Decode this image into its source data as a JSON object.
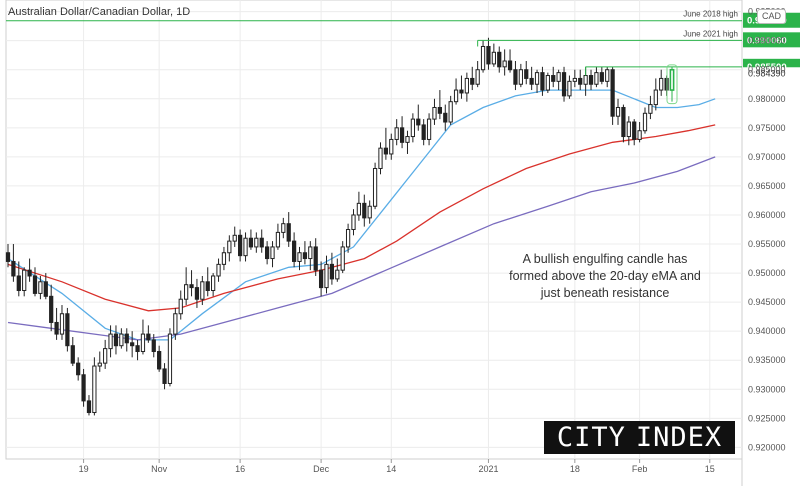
{
  "chart_data": {
    "type": "candlestick",
    "title": "Australian Dollar/Canadian Dollar, 1D",
    "currency": "CAD",
    "ylim": [
      0.918,
      0.997
    ],
    "y_ticks": [
      0.92,
      0.925,
      0.93,
      0.935,
      0.94,
      0.945,
      0.95,
      0.955,
      0.96,
      0.965,
      0.97,
      0.975,
      0.98,
      0.985,
      0.99,
      0.995
    ],
    "y_tick_labels": [
      "0.920000",
      "0.925000",
      "0.930000",
      "0.935000",
      "0.940000",
      "0.945000",
      "0.950000",
      "0.955000",
      "0.960000",
      "0.965000",
      "0.970000",
      "0.975000",
      "0.980000",
      "0.985000",
      "0.990000",
      "0.995000"
    ],
    "x_ticks": [
      {
        "label": "19",
        "index": 14
      },
      {
        "label": "Nov",
        "index": 28
      },
      {
        "label": "16",
        "index": 43
      },
      {
        "label": "Dec",
        "index": 58
      },
      {
        "label": "14",
        "index": 71
      },
      {
        "label": "2021",
        "index": 89
      },
      {
        "label": "18",
        "index": 105
      },
      {
        "label": "Feb",
        "index": 117
      },
      {
        "label": "15",
        "index": 130
      }
    ],
    "candles": [
      [
        0.9535,
        0.955,
        0.951,
        0.952
      ],
      [
        0.952,
        0.955,
        0.9485,
        0.9495
      ],
      [
        0.9495,
        0.952,
        0.946,
        0.947
      ],
      [
        0.947,
        0.951,
        0.946,
        0.9505
      ],
      [
        0.9505,
        0.9525,
        0.9485,
        0.9495
      ],
      [
        0.9495,
        0.951,
        0.946,
        0.9465
      ],
      [
        0.9465,
        0.9495,
        0.9455,
        0.9485
      ],
      [
        0.9485,
        0.95,
        0.9455,
        0.946
      ],
      [
        0.946,
        0.948,
        0.94,
        0.9415
      ],
      [
        0.9415,
        0.944,
        0.9385,
        0.9395
      ],
      [
        0.9395,
        0.9445,
        0.9385,
        0.943
      ],
      [
        0.943,
        0.944,
        0.9365,
        0.9375
      ],
      [
        0.9375,
        0.939,
        0.934,
        0.9345
      ],
      [
        0.9345,
        0.9355,
        0.9315,
        0.9325
      ],
      [
        0.9325,
        0.9335,
        0.927,
        0.928
      ],
      [
        0.928,
        0.929,
        0.9255,
        0.926
      ],
      [
        0.926,
        0.9355,
        0.9255,
        0.934
      ],
      [
        0.934,
        0.9365,
        0.933,
        0.9345
      ],
      [
        0.9345,
        0.9385,
        0.9335,
        0.937
      ],
      [
        0.937,
        0.941,
        0.9355,
        0.9395
      ],
      [
        0.9395,
        0.941,
        0.936,
        0.9375
      ],
      [
        0.9375,
        0.9405,
        0.937,
        0.9395
      ],
      [
        0.9395,
        0.9405,
        0.9365,
        0.938
      ],
      [
        0.938,
        0.94,
        0.9355,
        0.9375
      ],
      [
        0.9375,
        0.9385,
        0.935,
        0.9365
      ],
      [
        0.9365,
        0.942,
        0.936,
        0.9395
      ],
      [
        0.9395,
        0.941,
        0.938,
        0.9385
      ],
      [
        0.9385,
        0.9395,
        0.9355,
        0.9365
      ],
      [
        0.9365,
        0.9375,
        0.933,
        0.9335
      ],
      [
        0.9335,
        0.9345,
        0.93,
        0.931
      ],
      [
        0.931,
        0.9405,
        0.9305,
        0.9395
      ],
      [
        0.9395,
        0.944,
        0.9385,
        0.943
      ],
      [
        0.943,
        0.947,
        0.942,
        0.9455
      ],
      [
        0.9455,
        0.951,
        0.9445,
        0.948
      ],
      [
        0.948,
        0.9505,
        0.946,
        0.9475
      ],
      [
        0.9475,
        0.949,
        0.944,
        0.9455
      ],
      [
        0.9455,
        0.9495,
        0.9445,
        0.9485
      ],
      [
        0.9485,
        0.951,
        0.946,
        0.947
      ],
      [
        0.947,
        0.95,
        0.946,
        0.9495
      ],
      [
        0.9495,
        0.9525,
        0.9485,
        0.9515
      ],
      [
        0.9515,
        0.9545,
        0.9505,
        0.9535
      ],
      [
        0.9535,
        0.9565,
        0.952,
        0.9555
      ],
      [
        0.9555,
        0.958,
        0.9545,
        0.9565
      ],
      [
        0.9565,
        0.9575,
        0.952,
        0.953
      ],
      [
        0.953,
        0.957,
        0.952,
        0.956
      ],
      [
        0.956,
        0.9575,
        0.954,
        0.9545
      ],
      [
        0.9545,
        0.957,
        0.9535,
        0.956
      ],
      [
        0.956,
        0.9575,
        0.9535,
        0.9545
      ],
      [
        0.9545,
        0.9555,
        0.9515,
        0.9525
      ],
      [
        0.9525,
        0.9555,
        0.951,
        0.9545
      ],
      [
        0.9545,
        0.9585,
        0.954,
        0.957
      ],
      [
        0.957,
        0.9595,
        0.956,
        0.9585
      ],
      [
        0.9585,
        0.9605,
        0.9545,
        0.9555
      ],
      [
        0.9555,
        0.957,
        0.951,
        0.952
      ],
      [
        0.952,
        0.9545,
        0.9505,
        0.9535
      ],
      [
        0.9535,
        0.9555,
        0.9515,
        0.9525
      ],
      [
        0.9525,
        0.9555,
        0.9505,
        0.9545
      ],
      [
        0.9545,
        0.956,
        0.9495,
        0.9505
      ],
      [
        0.9505,
        0.952,
        0.946,
        0.9475
      ],
      [
        0.9475,
        0.953,
        0.9465,
        0.9515
      ],
      [
        0.9515,
        0.9535,
        0.948,
        0.949
      ],
      [
        0.949,
        0.9525,
        0.9485,
        0.9505
      ],
      [
        0.9505,
        0.9555,
        0.95,
        0.9545
      ],
      [
        0.9545,
        0.9585,
        0.9535,
        0.9575
      ],
      [
        0.9575,
        0.961,
        0.9565,
        0.96
      ],
      [
        0.96,
        0.964,
        0.959,
        0.962
      ],
      [
        0.962,
        0.9635,
        0.958,
        0.9595
      ],
      [
        0.9595,
        0.9625,
        0.9585,
        0.9615
      ],
      [
        0.9615,
        0.969,
        0.961,
        0.968
      ],
      [
        0.968,
        0.9725,
        0.967,
        0.9715
      ],
      [
        0.9715,
        0.975,
        0.9695,
        0.9705
      ],
      [
        0.9705,
        0.974,
        0.9695,
        0.973
      ],
      [
        0.973,
        0.9765,
        0.972,
        0.975
      ],
      [
        0.975,
        0.977,
        0.9715,
        0.9725
      ],
      [
        0.9725,
        0.9745,
        0.9705,
        0.9735
      ],
      [
        0.9735,
        0.9775,
        0.9725,
        0.9765
      ],
      [
        0.9765,
        0.979,
        0.9745,
        0.9755
      ],
      [
        0.9755,
        0.9765,
        0.972,
        0.973
      ],
      [
        0.973,
        0.9775,
        0.972,
        0.9765
      ],
      [
        0.9765,
        0.98,
        0.9755,
        0.9785
      ],
      [
        0.9785,
        0.9815,
        0.9765,
        0.9775
      ],
      [
        0.9775,
        0.979,
        0.9745,
        0.976
      ],
      [
        0.976,
        0.9805,
        0.9755,
        0.9795
      ],
      [
        0.9795,
        0.9835,
        0.979,
        0.9815
      ],
      [
        0.9815,
        0.984,
        0.98,
        0.981
      ],
      [
        0.981,
        0.9845,
        0.9795,
        0.9835
      ],
      [
        0.9835,
        0.9855,
        0.9815,
        0.9825
      ],
      [
        0.9825,
        0.9865,
        0.982,
        0.985
      ],
      [
        0.985,
        0.99,
        0.9845,
        0.989
      ],
      [
        0.989,
        0.9905,
        0.985,
        0.986
      ],
      [
        0.986,
        0.9895,
        0.9855,
        0.988
      ],
      [
        0.988,
        0.989,
        0.9845,
        0.9855
      ],
      [
        0.9855,
        0.9885,
        0.984,
        0.9865
      ],
      [
        0.9865,
        0.9885,
        0.9845,
        0.985
      ],
      [
        0.985,
        0.9865,
        0.9815,
        0.9825
      ],
      [
        0.9825,
        0.986,
        0.982,
        0.985
      ],
      [
        0.985,
        0.9865,
        0.9825,
        0.9835
      ],
      [
        0.9835,
        0.9855,
        0.9815,
        0.9825
      ],
      [
        0.9825,
        0.985,
        0.981,
        0.9845
      ],
      [
        0.9845,
        0.9855,
        0.9805,
        0.9815
      ],
      [
        0.9815,
        0.9845,
        0.981,
        0.984
      ],
      [
        0.984,
        0.9855,
        0.982,
        0.983
      ],
      [
        0.983,
        0.985,
        0.9815,
        0.9845
      ],
      [
        0.9845,
        0.9855,
        0.9795,
        0.9805
      ],
      [
        0.9805,
        0.984,
        0.98,
        0.983
      ],
      [
        0.983,
        0.985,
        0.982,
        0.9835
      ],
      [
        0.9835,
        0.985,
        0.9815,
        0.9825
      ],
      [
        0.9825,
        0.9855,
        0.9805,
        0.984
      ],
      [
        0.984,
        0.985,
        0.9815,
        0.9825
      ],
      [
        0.9825,
        0.9855,
        0.982,
        0.9845
      ],
      [
        0.9845,
        0.9855,
        0.9825,
        0.983
      ],
      [
        0.983,
        0.9855,
        0.982,
        0.985
      ],
      [
        0.985,
        0.9855,
        0.9755,
        0.977
      ],
      [
        0.977,
        0.98,
        0.9755,
        0.9785
      ],
      [
        0.9785,
        0.979,
        0.9725,
        0.9735
      ],
      [
        0.9735,
        0.977,
        0.972,
        0.976
      ],
      [
        0.976,
        0.9765,
        0.972,
        0.973
      ],
      [
        0.973,
        0.976,
        0.9725,
        0.9745
      ],
      [
        0.9745,
        0.9785,
        0.974,
        0.9775
      ],
      [
        0.9775,
        0.9805,
        0.9765,
        0.979
      ],
      [
        0.979,
        0.9835,
        0.978,
        0.9815
      ],
      [
        0.9815,
        0.985,
        0.9805,
        0.9835
      ],
      [
        0.9835,
        0.984,
        0.9805,
        0.9815
      ],
      [
        0.9815,
        0.9855,
        0.9795,
        0.985
      ]
    ],
    "series": [
      {
        "name": "",
        "color": "#5aade6",
        "values": [
          [
            0,
            0.9525
          ],
          [
            10,
            0.9465
          ],
          [
            18,
            0.9405
          ],
          [
            24,
            0.9385
          ],
          [
            30,
            0.9385
          ],
          [
            36,
            0.943
          ],
          [
            44,
            0.9485
          ],
          [
            52,
            0.951
          ],
          [
            58,
            0.9515
          ],
          [
            64,
            0.9545
          ],
          [
            70,
            0.9615
          ],
          [
            76,
            0.9685
          ],
          [
            82,
            0.9755
          ],
          [
            88,
            0.9785
          ],
          [
            94,
            0.9805
          ],
          [
            100,
            0.9815
          ],
          [
            106,
            0.9815
          ],
          [
            112,
            0.9815
          ],
          [
            116,
            0.98
          ],
          [
            120,
            0.9785
          ],
          [
            124,
            0.9785
          ],
          [
            128,
            0.979
          ],
          [
            131,
            0.98
          ]
        ]
      },
      {
        "name": "",
        "color": "#d9322c",
        "values": [
          [
            0,
            0.9515
          ],
          [
            10,
            0.9485
          ],
          [
            18,
            0.9455
          ],
          [
            26,
            0.9435
          ],
          [
            32,
            0.944
          ],
          [
            40,
            0.9465
          ],
          [
            50,
            0.949
          ],
          [
            58,
            0.9505
          ],
          [
            66,
            0.9525
          ],
          [
            72,
            0.9555
          ],
          [
            80,
            0.9605
          ],
          [
            88,
            0.9645
          ],
          [
            96,
            0.968
          ],
          [
            104,
            0.9705
          ],
          [
            112,
            0.9725
          ],
          [
            120,
            0.9735
          ],
          [
            126,
            0.9745
          ],
          [
            131,
            0.9755
          ]
        ]
      },
      {
        "name": "",
        "color": "#7a6cbf",
        "values": [
          [
            0,
            0.9415
          ],
          [
            8,
            0.9405
          ],
          [
            16,
            0.9395
          ],
          [
            24,
            0.9385
          ],
          [
            32,
            0.9395
          ],
          [
            40,
            0.9415
          ],
          [
            50,
            0.944
          ],
          [
            60,
            0.9465
          ],
          [
            70,
            0.9505
          ],
          [
            80,
            0.9545
          ],
          [
            90,
            0.9585
          ],
          [
            100,
            0.9615
          ],
          [
            108,
            0.964
          ],
          [
            116,
            0.9655
          ],
          [
            124,
            0.9675
          ],
          [
            131,
            0.97
          ]
        ]
      }
    ],
    "levels": [
      {
        "label": "June 2018 high",
        "value": 0.99343,
        "value_label": "0.993430",
        "color": "#2bb34a"
      },
      {
        "label": "June 2021 high",
        "value": 0.99006,
        "value_label": "0.990060",
        "color": "#2bb34a"
      },
      {
        "label": "",
        "value": 0.9855,
        "value_label": "0.985500",
        "color": "#2bb34a"
      }
    ],
    "last_price": {
      "value": 0.98439,
      "label": "0.984390"
    },
    "annotation": "A bullish engulfing candle has formed above the 20-day eMA and just beneath resistance",
    "grid": true
  },
  "logo": {
    "word1": "CITY",
    "word2": "INDEX"
  }
}
